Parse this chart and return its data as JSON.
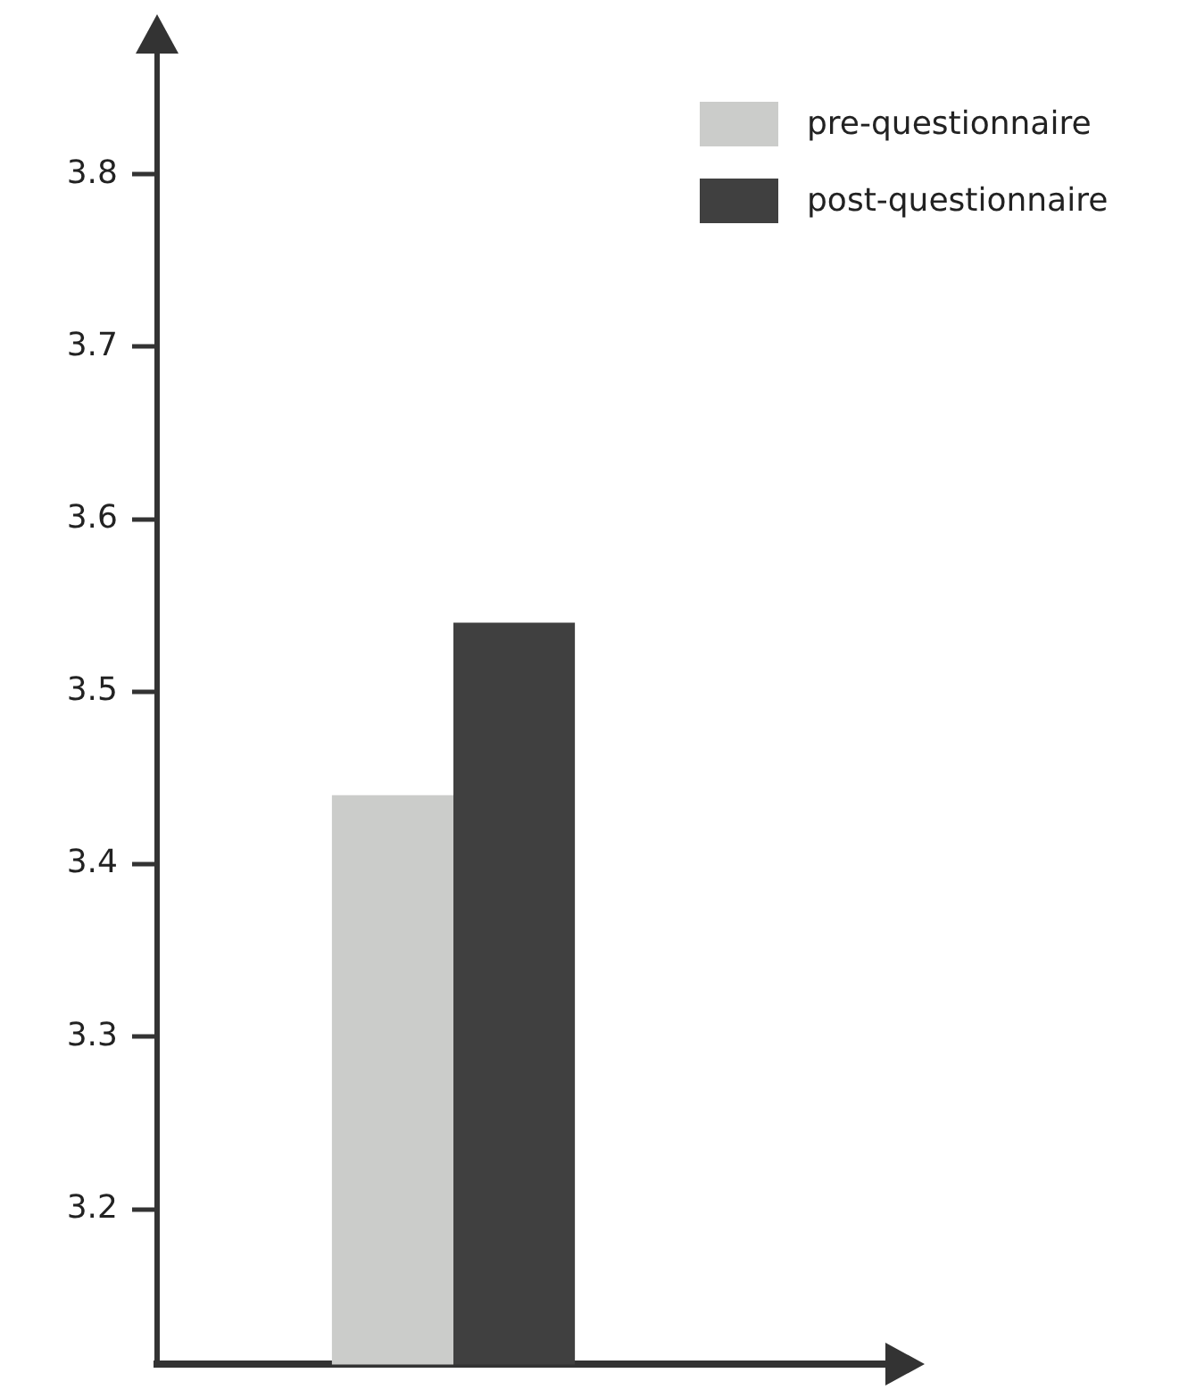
{
  "chart_data": {
    "type": "bar",
    "categories": [
      null
    ],
    "series": [
      {
        "name": "pre-questionnaire",
        "color": "#cbccca",
        "values": [
          3.44
        ]
      },
      {
        "name": "post-questionnaire",
        "color": "#404040",
        "values": [
          3.54
        ]
      }
    ],
    "ylim": [
      3.11,
      3.87
    ],
    "yticks": [
      3.2,
      3.3,
      3.4,
      3.5,
      3.6,
      3.7,
      3.8
    ],
    "grid": false,
    "legend": "top right"
  }
}
